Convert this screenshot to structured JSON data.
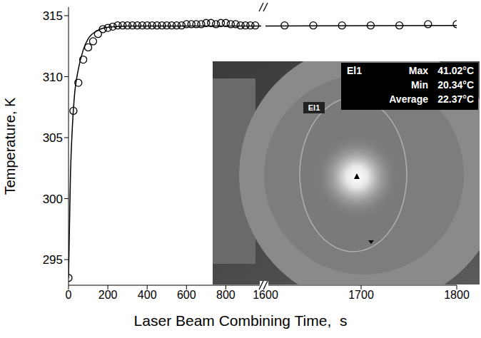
{
  "chart_data": {
    "type": "scatter",
    "x_label": "Laser Beam Combining Time,  s",
    "y_label": "Temperature,  K",
    "xlim": [
      [
        0,
        980
      ],
      [
        1600,
        1800
      ]
    ],
    "xticks": [
      [
        0,
        200,
        400,
        600,
        800
      ],
      [
        1600,
        1700,
        1800
      ]
    ],
    "ylim": [
      292.9,
      315.7
    ],
    "yticks": [
      295,
      300,
      305,
      310,
      315
    ],
    "grid": false,
    "series": [
      {
        "type": "scatter",
        "marker": "open_circle",
        "color": "#000000",
        "x": [
          0,
          25,
          50,
          75,
          100,
          125,
          150,
          175,
          200,
          225,
          250,
          275,
          300,
          325,
          350,
          375,
          400,
          425,
          450,
          475,
          500,
          525,
          550,
          575,
          600,
          625,
          650,
          675,
          700,
          725,
          750,
          775,
          800,
          825,
          850,
          875,
          900,
          925,
          950,
          1620,
          1650,
          1680,
          1710,
          1740,
          1770,
          1800
        ],
        "values": [
          293.5,
          307.2,
          309.5,
          311.4,
          312.4,
          312.9,
          313.5,
          313.9,
          314.0,
          314.1,
          314.2,
          314.2,
          314.2,
          314.2,
          314.2,
          314.2,
          314.2,
          314.2,
          314.2,
          314.2,
          314.2,
          314.2,
          314.2,
          314.2,
          314.3,
          314.3,
          314.3,
          314.3,
          314.4,
          314.4,
          314.3,
          314.4,
          314.4,
          314.3,
          314.3,
          314.2,
          314.2,
          314.2,
          314.2,
          314.2,
          314.2,
          314.2,
          314.2,
          314.2,
          314.3,
          314.3
        ]
      },
      {
        "type": "line",
        "line_style": "solid",
        "color": "#000000",
        "x": [
          0,
          10,
          20,
          30,
          50,
          75,
          100,
          150,
          200,
          300,
          500,
          980,
          1600,
          1800
        ],
        "values": [
          293.5,
          302.0,
          306.0,
          308.4,
          310.6,
          312.2,
          313.1,
          313.8,
          314.05,
          314.15,
          314.15,
          314.15,
          314.15,
          314.2
        ]
      }
    ],
    "inset": {
      "region_label": "El1",
      "stats": [
        {
          "label": "Max",
          "value": 41.02,
          "unit": "°C"
        },
        {
          "label": "Min",
          "value": 20.34,
          "unit": "°C"
        },
        {
          "label": "Average",
          "value": 22.37,
          "unit": "°C"
        }
      ]
    }
  }
}
